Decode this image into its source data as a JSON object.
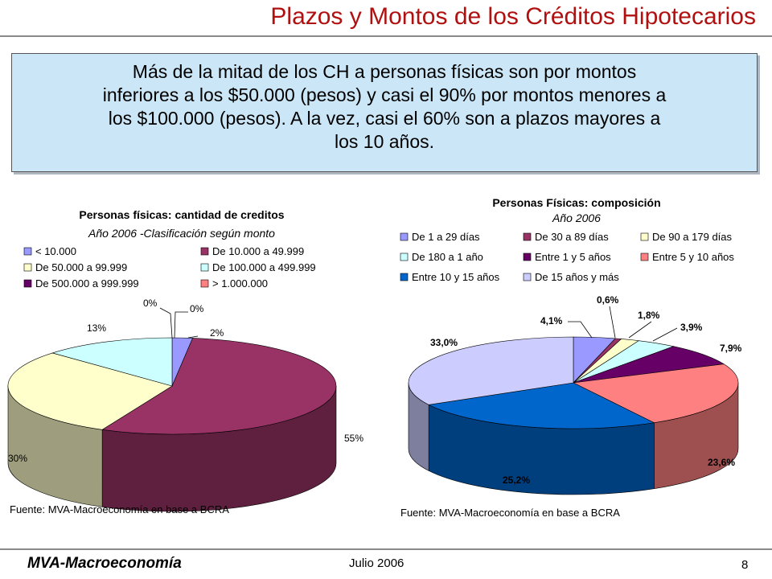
{
  "header": {
    "title": "Plazos y Montos de los Créditos Hipotecarios"
  },
  "summary": {
    "lines": [
      "Más de la mitad de los CH a personas físicas son por montos",
      "inferiores a los $50.000 (pesos) y casi el 90% por montos menores a",
      "los $100.000 (pesos). A la vez, casi el 60% son a plazos mayores a",
      "los 10 años."
    ]
  },
  "footer": {
    "brand": "MVA-Macroeconomía",
    "date": "Julio 2006",
    "page": "8"
  },
  "chart_data": [
    {
      "type": "pie",
      "title": "Personas físicas: cantidad de creditos",
      "subtitle": "Año 2006 -Clasificación según monto",
      "source": "Fuente: MVA-Macroeconomía en base a BCRA",
      "legend_position": "top",
      "series": [
        {
          "name": "< 10.000",
          "value": 2,
          "label": "2%",
          "color": "#9999ff"
        },
        {
          "name": "De 10.000 a 49.999",
          "value": 55,
          "label": "55%",
          "color": "#993366"
        },
        {
          "name": "De 50.000 a 99.999",
          "value": 30,
          "label": "30%",
          "color": "#ffffcc"
        },
        {
          "name": "De 100.000 a 499.999",
          "value": 13,
          "label": "13%",
          "color": "#ccffff"
        },
        {
          "name": "De 500.000 a 999.999",
          "value": 0,
          "label": "0%",
          "color": "#660066"
        },
        {
          "name": "> 1.000.000",
          "value": 0,
          "label": "0%",
          "color": "#ff8080"
        }
      ]
    },
    {
      "type": "pie",
      "title": "Personas Físicas: composición",
      "subtitle": "Año 2006",
      "source": "Fuente: MVA-Macroeconomía en base a BCRA",
      "legend_position": "top",
      "series": [
        {
          "name": "De 1 a 29 días",
          "value": 4.1,
          "label": "4,1%",
          "color": "#9999ff"
        },
        {
          "name": "De 30 a 89 días",
          "value": 0.6,
          "label": "0,6%",
          "color": "#993366"
        },
        {
          "name": "De 90 a 179 días",
          "value": 1.8,
          "label": "1,8%",
          "color": "#ffffcc"
        },
        {
          "name": "De 180 a 1 año",
          "value": 3.9,
          "label": "3,9%",
          "color": "#ccffff"
        },
        {
          "name": "Entre 1 y 5 años",
          "value": 7.9,
          "label": "7,9%",
          "color": "#660066"
        },
        {
          "name": "Entre 5 y 10 años",
          "value": 23.6,
          "label": "23,6%",
          "color": "#ff8080"
        },
        {
          "name": "Entre 10 y 15 años",
          "value": 25.2,
          "label": "25,2%",
          "color": "#0066cc"
        },
        {
          "name": "De 15 años y más",
          "value": 33.0,
          "label": "33,0%",
          "color": "#ccccff"
        }
      ]
    }
  ]
}
